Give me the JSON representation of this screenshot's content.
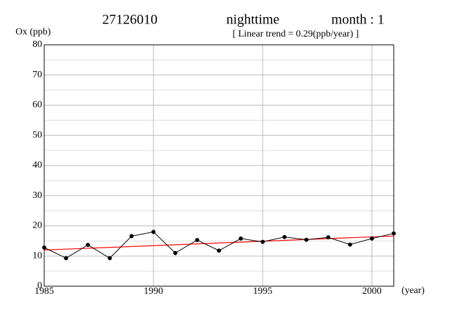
{
  "chart_data": {
    "type": "line",
    "title_station": "27126010",
    "title_period": "nighttime",
    "title_month": "month : 1",
    "subtitle": "[ Linear trend = 0.29(ppb/year) ]",
    "ylabel": "Ox (ppb)",
    "xlabel": "(year)",
    "x": [
      1985,
      1986,
      1987,
      1988,
      1989,
      1990,
      1991,
      1992,
      1993,
      1994,
      1995,
      1996,
      1997,
      1998,
      1999,
      2000,
      2001
    ],
    "series": [
      {
        "color": "#000000",
        "values": [
          12.8,
          9.3,
          13.7,
          9.3,
          16.6,
          18.0,
          11.0,
          15.3,
          11.8,
          15.8,
          14.7,
          16.3,
          15.4,
          16.2,
          13.8,
          15.8,
          17.5
        ]
      }
    ],
    "trend": {
      "color": "#ff0000",
      "x": [
        1985,
        2001
      ],
      "values": [
        12.0,
        16.64
      ]
    },
    "xlim": [
      1985,
      2001
    ],
    "xticks": [
      1985,
      1990,
      1995,
      2000
    ],
    "ylim": [
      0,
      80
    ],
    "yticks": [
      0,
      10,
      20,
      30,
      40,
      50,
      60,
      70,
      80
    ],
    "y_minor_grid": [
      5,
      15,
      25,
      35,
      45,
      55,
      65,
      75
    ],
    "grid": true
  }
}
